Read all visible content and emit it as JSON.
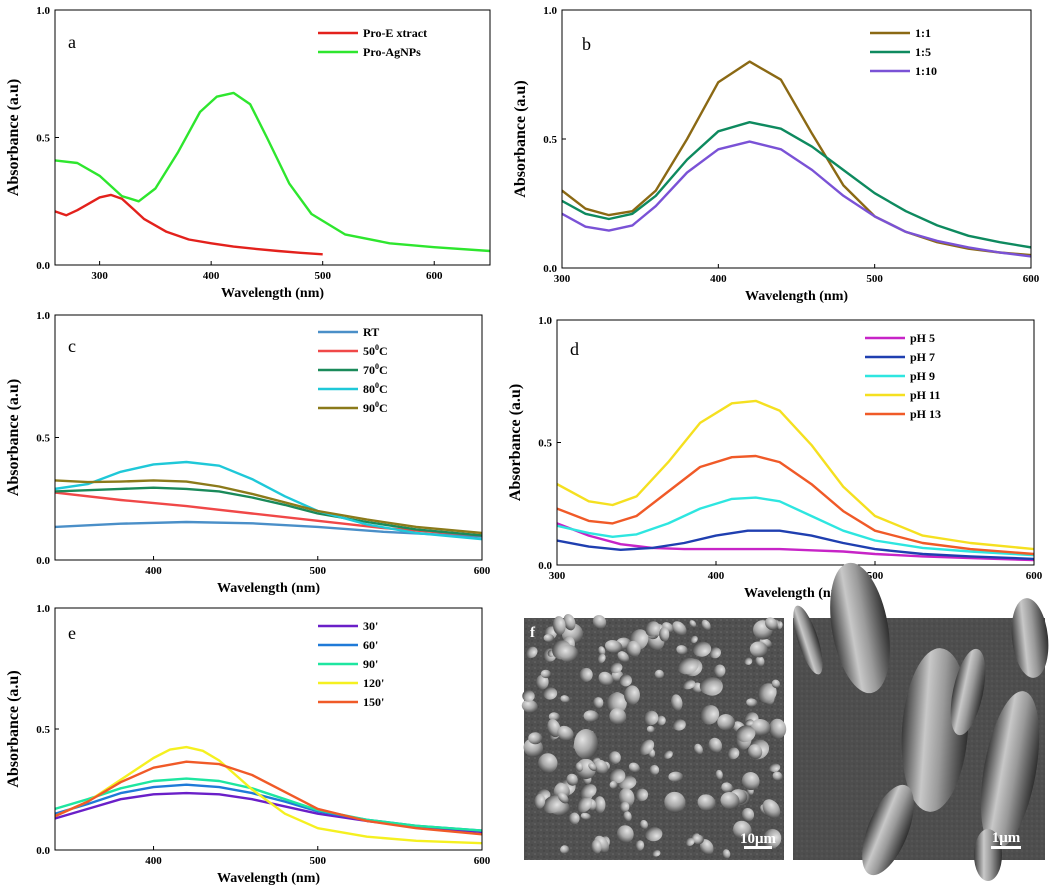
{
  "chart_data": [
    {
      "panel": "a",
      "type": "line",
      "xlabel": "Wavelength (nm)",
      "ylabel": "Absorbance (a.u)",
      "xlim": [
        260,
        650
      ],
      "ylim": [
        0,
        1
      ],
      "xticks": [
        300,
        400,
        500,
        600
      ],
      "yticks": [
        0.0,
        0.5,
        1.0
      ],
      "ytick_labels": [
        "0.0",
        "0.5",
        "1.0"
      ],
      "legend_position": "top-right",
      "series": [
        {
          "name": "Pro-E xtract",
          "color": "#e3211c",
          "x": [
            260,
            270,
            280,
            290,
            300,
            310,
            320,
            330,
            340,
            360,
            380,
            400,
            420,
            440,
            460,
            480,
            500
          ],
          "y": [
            0.21,
            0.195,
            0.215,
            0.24,
            0.265,
            0.275,
            0.26,
            0.22,
            0.18,
            0.13,
            0.1,
            0.085,
            0.072,
            0.063,
            0.055,
            0.048,
            0.042
          ]
        },
        {
          "name": "Pro-AgNPs",
          "color": "#2ee62e",
          "x": [
            260,
            280,
            300,
            320,
            335,
            350,
            370,
            390,
            405,
            420,
            435,
            450,
            470,
            490,
            520,
            560,
            600,
            650
          ],
          "y": [
            0.41,
            0.4,
            0.35,
            0.27,
            0.25,
            0.3,
            0.44,
            0.6,
            0.66,
            0.675,
            0.63,
            0.5,
            0.32,
            0.2,
            0.12,
            0.085,
            0.07,
            0.055
          ]
        }
      ]
    },
    {
      "panel": "b",
      "type": "line",
      "xlabel": "Wavelength (nm)",
      "ylabel": "Absorbance (a.u)",
      "xlim": [
        300,
        600
      ],
      "ylim": [
        0,
        1
      ],
      "xticks": [
        300,
        400,
        500,
        600
      ],
      "yticks": [
        0.0,
        0.5,
        1.0
      ],
      "ytick_labels": [
        "0.0",
        "0.5",
        "1.0"
      ],
      "legend_position": "top-right",
      "series": [
        {
          "name": "1:1",
          "color": "#8b6914",
          "x": [
            300,
            315,
            330,
            345,
            360,
            380,
            400,
            420,
            440,
            460,
            480,
            500,
            520,
            540,
            560,
            580,
            600
          ],
          "y": [
            0.3,
            0.23,
            0.205,
            0.22,
            0.3,
            0.5,
            0.72,
            0.8,
            0.73,
            0.52,
            0.32,
            0.2,
            0.14,
            0.1,
            0.075,
            0.06,
            0.05
          ]
        },
        {
          "name": "1:5",
          "color": "#0e8a5f",
          "x": [
            300,
            315,
            330,
            345,
            360,
            380,
            400,
            420,
            440,
            460,
            480,
            500,
            520,
            540,
            560,
            580,
            600
          ],
          "y": [
            0.26,
            0.21,
            0.19,
            0.21,
            0.28,
            0.42,
            0.53,
            0.565,
            0.54,
            0.47,
            0.38,
            0.29,
            0.22,
            0.165,
            0.125,
            0.1,
            0.08
          ]
        },
        {
          "name": "1:10",
          "color": "#7a52d6",
          "x": [
            300,
            315,
            330,
            345,
            360,
            380,
            400,
            420,
            440,
            460,
            480,
            500,
            520,
            540,
            560,
            580,
            600
          ],
          "y": [
            0.21,
            0.16,
            0.145,
            0.165,
            0.24,
            0.37,
            0.46,
            0.49,
            0.46,
            0.38,
            0.28,
            0.2,
            0.14,
            0.105,
            0.08,
            0.06,
            0.045
          ]
        }
      ]
    },
    {
      "panel": "c",
      "type": "line",
      "xlabel": "Wavelength (nm)",
      "ylabel": "Absorbance (a.u)",
      "xlim": [
        340,
        600
      ],
      "ylim": [
        0,
        1
      ],
      "xticks": [
        400,
        500,
        600
      ],
      "yticks": [
        0.0,
        0.5,
        1.0
      ],
      "ytick_labels": [
        "0.0",
        "0.5",
        "1.0"
      ],
      "legend_position": "top-right",
      "series": [
        {
          "name": "RT",
          "color": "#4a8fc8",
          "x": [
            340,
            380,
            420,
            460,
            500,
            540,
            600
          ],
          "y": [
            0.135,
            0.148,
            0.155,
            0.15,
            0.135,
            0.115,
            0.095
          ]
        },
        {
          "name": "50",
          "sup": "0",
          "unit": "C",
          "color": "#f04848",
          "x": [
            340,
            380,
            420,
            460,
            500,
            540,
            600
          ],
          "y": [
            0.275,
            0.245,
            0.22,
            0.19,
            0.16,
            0.13,
            0.1
          ]
        },
        {
          "name": "70",
          "sup": "0",
          "unit": "C",
          "color": "#1a8a5a",
          "x": [
            340,
            360,
            380,
            400,
            420,
            440,
            460,
            480,
            500,
            530,
            560,
            600
          ],
          "y": [
            0.28,
            0.285,
            0.29,
            0.295,
            0.29,
            0.28,
            0.255,
            0.225,
            0.19,
            0.155,
            0.125,
            0.1
          ]
        },
        {
          "name": "80",
          "sup": "0",
          "unit": "C",
          "color": "#1fc8d8",
          "x": [
            340,
            360,
            380,
            400,
            420,
            440,
            460,
            480,
            500,
            530,
            560,
            600
          ],
          "y": [
            0.29,
            0.31,
            0.36,
            0.39,
            0.4,
            0.385,
            0.33,
            0.26,
            0.2,
            0.145,
            0.11,
            0.085
          ]
        },
        {
          "name": "90",
          "sup": "0",
          "unit": "C",
          "color": "#8b7a1a",
          "x": [
            340,
            360,
            380,
            400,
            420,
            440,
            460,
            480,
            500,
            530,
            560,
            600
          ],
          "y": [
            0.325,
            0.318,
            0.32,
            0.325,
            0.32,
            0.3,
            0.27,
            0.235,
            0.2,
            0.165,
            0.135,
            0.11
          ]
        }
      ]
    },
    {
      "panel": "d",
      "type": "line",
      "xlabel": "Wavelength (nm)",
      "ylabel": "Absorbance (a.u)",
      "xlim": [
        300,
        600
      ],
      "ylim": [
        0,
        1
      ],
      "xticks": [
        300,
        400,
        500,
        600
      ],
      "yticks": [
        0.0,
        0.5,
        1.0
      ],
      "ytick_labels": [
        "0.0",
        "0.5",
        "1.0"
      ],
      "legend_position": "top-right",
      "series": [
        {
          "name": "pH 5",
          "color": "#c724c7",
          "x": [
            300,
            320,
            340,
            360,
            380,
            400,
            420,
            440,
            460,
            480,
            500,
            530,
            560,
            600
          ],
          "y": [
            0.17,
            0.12,
            0.085,
            0.07,
            0.065,
            0.065,
            0.065,
            0.065,
            0.06,
            0.055,
            0.045,
            0.035,
            0.028,
            0.02
          ]
        },
        {
          "name": "pH 7",
          "color": "#1f3fb0",
          "x": [
            300,
            320,
            340,
            360,
            380,
            400,
            420,
            440,
            460,
            480,
            500,
            530,
            560,
            600
          ],
          "y": [
            0.1,
            0.075,
            0.062,
            0.07,
            0.09,
            0.12,
            0.14,
            0.14,
            0.12,
            0.09,
            0.065,
            0.045,
            0.035,
            0.025
          ]
        },
        {
          "name": "pH 9",
          "color": "#2ee6e0",
          "x": [
            300,
            320,
            335,
            350,
            370,
            390,
            410,
            425,
            440,
            460,
            480,
            500,
            530,
            560,
            600
          ],
          "y": [
            0.16,
            0.13,
            0.115,
            0.125,
            0.17,
            0.23,
            0.27,
            0.275,
            0.26,
            0.2,
            0.14,
            0.1,
            0.07,
            0.055,
            0.04
          ]
        },
        {
          "name": "pH 11",
          "color": "#f5e020",
          "x": [
            300,
            320,
            335,
            350,
            370,
            390,
            410,
            425,
            440,
            460,
            480,
            500,
            530,
            560,
            600
          ],
          "y": [
            0.33,
            0.26,
            0.245,
            0.28,
            0.42,
            0.58,
            0.66,
            0.67,
            0.63,
            0.49,
            0.32,
            0.2,
            0.12,
            0.09,
            0.065
          ]
        },
        {
          "name": "pH 13",
          "color": "#f05a28",
          "x": [
            300,
            320,
            335,
            350,
            370,
            390,
            410,
            425,
            440,
            460,
            480,
            500,
            530,
            560,
            600
          ],
          "y": [
            0.23,
            0.18,
            0.17,
            0.2,
            0.3,
            0.4,
            0.44,
            0.445,
            0.42,
            0.33,
            0.22,
            0.14,
            0.09,
            0.065,
            0.045
          ]
        }
      ]
    },
    {
      "panel": "e",
      "type": "line",
      "xlabel": "Wavelength (nm)",
      "ylabel": "Absorbance (a.u)",
      "xlim": [
        340,
        600
      ],
      "ylim": [
        0,
        1
      ],
      "xticks": [
        400,
        500,
        600
      ],
      "yticks": [
        0.0,
        0.5,
        1.0
      ],
      "ytick_labels": [
        "0.0",
        "0.5",
        "1.0"
      ],
      "legend_position": "top-right",
      "series": [
        {
          "name": "30'",
          "color": "#6a1fc8",
          "x": [
            340,
            360,
            380,
            400,
            420,
            440,
            460,
            480,
            500,
            530,
            560,
            600
          ],
          "y": [
            0.13,
            0.17,
            0.21,
            0.23,
            0.235,
            0.23,
            0.21,
            0.18,
            0.15,
            0.12,
            0.095,
            0.075
          ]
        },
        {
          "name": "60'",
          "color": "#1f7ad8",
          "x": [
            340,
            360,
            380,
            400,
            420,
            440,
            460,
            480,
            500,
            530,
            560,
            600
          ],
          "y": [
            0.15,
            0.19,
            0.235,
            0.26,
            0.27,
            0.26,
            0.235,
            0.2,
            0.16,
            0.125,
            0.1,
            0.08
          ]
        },
        {
          "name": "90'",
          "color": "#1ee6a0",
          "x": [
            340,
            360,
            380,
            400,
            420,
            440,
            460,
            480,
            500,
            530,
            560,
            600
          ],
          "y": [
            0.17,
            0.21,
            0.255,
            0.285,
            0.295,
            0.285,
            0.255,
            0.21,
            0.165,
            0.125,
            0.1,
            0.08
          ]
        },
        {
          "name": "120'",
          "color": "#f5f020",
          "x": [
            340,
            360,
            380,
            400,
            410,
            420,
            430,
            440,
            460,
            480,
            500,
            530,
            560,
            600
          ],
          "y": [
            0.14,
            0.2,
            0.29,
            0.38,
            0.415,
            0.425,
            0.41,
            0.37,
            0.25,
            0.15,
            0.09,
            0.055,
            0.038,
            0.028
          ]
        },
        {
          "name": "150'",
          "color": "#f05a28",
          "x": [
            340,
            360,
            380,
            400,
            420,
            440,
            460,
            480,
            500,
            530,
            560,
            600
          ],
          "y": [
            0.14,
            0.2,
            0.28,
            0.34,
            0.365,
            0.355,
            0.31,
            0.24,
            0.17,
            0.12,
            0.09,
            0.065
          ]
        }
      ]
    }
  ],
  "sem_images": {
    "panel": "f",
    "left_scale_bar": "10μm",
    "right_scale_bar": "1μm"
  }
}
